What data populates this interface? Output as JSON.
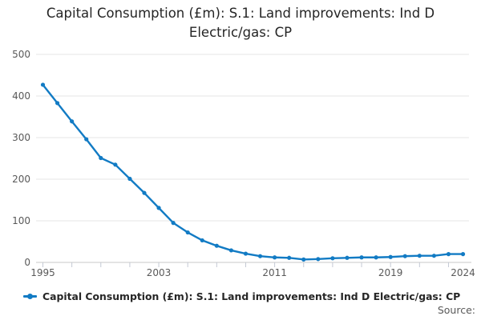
{
  "page": {
    "title": "Capital Consumption (£m): S.1: Land improvements: Ind D Electric/gas: CP",
    "source_label": "Source:"
  },
  "legend": {
    "label": "Capital Consumption (£m): S.1: Land improvements: Ind D Electric/gas: CP"
  },
  "colors": {
    "line": "#127bc4",
    "grid": "#e6e6e6",
    "axis": "#c8c8c8",
    "tick": "#c4c9d4",
    "axis_label": "#595959",
    "title_text": "#252525",
    "source_text": "#595959"
  },
  "chart_data": {
    "type": "line",
    "title": "Capital Consumption (£m): S.1: Land improvements: Ind D Electric/gas: CP",
    "x": [
      1995,
      1996,
      1997,
      1998,
      1999,
      2000,
      2001,
      2002,
      2003,
      2004,
      2005,
      2006,
      2007,
      2008,
      2009,
      2010,
      2011,
      2012,
      2013,
      2014,
      2015,
      2016,
      2017,
      2018,
      2019,
      2020,
      2021,
      2022,
      2023,
      2024
    ],
    "series": [
      {
        "name": "Capital Consumption (£m): S.1: Land improvements: Ind D Electric/gas: CP",
        "values": [
          427,
          383,
          339,
          296,
          251,
          235,
          201,
          167,
          131,
          95,
          72,
          53,
          40,
          29,
          21,
          15,
          12,
          11,
          7,
          8,
          10,
          11,
          12,
          12,
          13,
          15,
          16,
          16,
          20,
          20
        ]
      }
    ],
    "xlabel": "",
    "ylabel": "",
    "ylim": [
      0,
      500
    ],
    "yticks": [
      0,
      100,
      200,
      300,
      400,
      500
    ],
    "xtick_minor_years": [
      1995,
      1997,
      1999,
      2001,
      2003,
      2005,
      2007,
      2009,
      2011,
      2013,
      2015,
      2017,
      2019,
      2021,
      2023
    ],
    "xtick_labeled_years": [
      1995,
      2003,
      2011,
      2019,
      2024
    ],
    "grid": "horizontal",
    "legend_position": "bottom-left",
    "marker": "circle"
  }
}
